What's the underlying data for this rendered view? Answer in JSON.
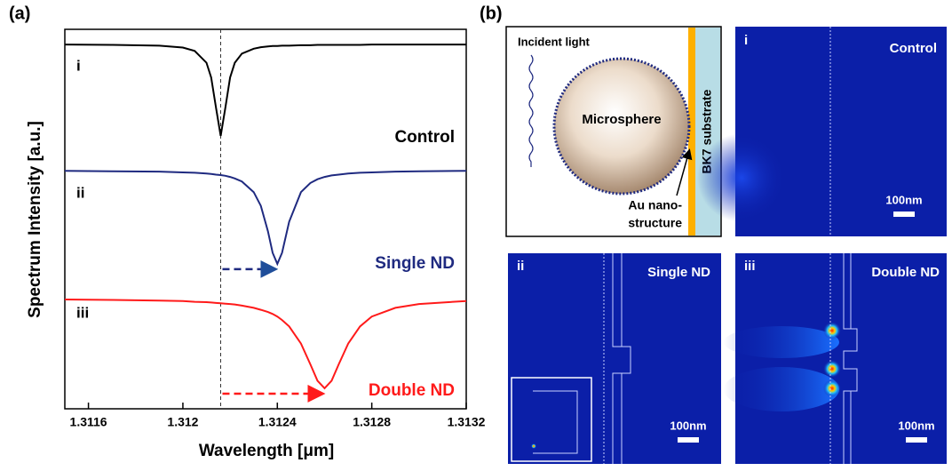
{
  "panel_labels": [
    "(a)",
    "(b)"
  ],
  "chart_data": {
    "type": "line",
    "x_label": "Wavelength [μm]",
    "y_label": "Spectrum Intensity [a.u.]",
    "x": [
      1.3115,
      1.3117,
      1.3119,
      1.312,
      1.31205,
      1.3121,
      1.31212,
      1.31214,
      1.31216,
      1.31218,
      1.3122,
      1.31222,
      1.31225,
      1.3123,
      1.31233,
      1.31236,
      1.31238,
      1.3124,
      1.31242,
      1.31245,
      1.3125,
      1.31254,
      1.31257,
      1.3126,
      1.31263,
      1.31266,
      1.3127,
      1.31275,
      1.3128,
      1.3129,
      1.313,
      1.3132
    ],
    "series": [
      {
        "name": "Control",
        "label": "i",
        "color": "#000000",
        "values": [
          9.6,
          9.59,
          9.57,
          9.52,
          9.43,
          9.12,
          8.73,
          7.94,
          7.19,
          7.94,
          8.73,
          9.12,
          9.36,
          9.49,
          9.53,
          9.55,
          9.56,
          9.56,
          9.57,
          9.57,
          9.58,
          9.58,
          9.59,
          9.59,
          9.59,
          9.59,
          9.59,
          9.59,
          9.6,
          9.6,
          9.6,
          9.6
        ]
      },
      {
        "name": "Single ND",
        "label": "ii",
        "color": "#1f2a80",
        "values": [
          6.27,
          6.26,
          6.25,
          6.23,
          6.22,
          6.2,
          6.19,
          6.17,
          6.16,
          6.14,
          6.11,
          6.07,
          5.99,
          5.71,
          5.35,
          4.68,
          4.11,
          3.82,
          4.11,
          4.93,
          5.71,
          5.95,
          6.05,
          6.11,
          6.15,
          6.17,
          6.2,
          6.22,
          6.23,
          6.25,
          6.26,
          6.27
        ]
      },
      {
        "name": "Double ND",
        "label": "iii",
        "color": "#ff1a1a",
        "values": [
          2.88,
          2.87,
          2.85,
          2.84,
          2.82,
          2.81,
          2.8,
          2.79,
          2.78,
          2.77,
          2.76,
          2.75,
          2.72,
          2.66,
          2.61,
          2.55,
          2.5,
          2.43,
          2.34,
          2.17,
          1.72,
          1.17,
          0.74,
          0.54,
          0.74,
          1.17,
          1.72,
          2.17,
          2.43,
          2.66,
          2.76,
          2.84
        ]
      }
    ],
    "vline": 1.31216,
    "xlim": [
      1.3115,
      1.3132
    ],
    "ylim": [
      0,
      10
    ],
    "xticks": [
      1.3116,
      1.312,
      1.3124,
      1.3128,
      1.3132
    ]
  },
  "panel_b": {
    "schematic": {
      "incident": "Incident light",
      "sphere": "Microsphere",
      "substrate": "BK7 substrate",
      "au": [
        "Au nano-",
        "structure"
      ]
    },
    "maps": [
      {
        "label": "i",
        "title": "Control",
        "scale": "100nm"
      },
      {
        "label": "ii",
        "title": "Single ND",
        "scale": "100nm"
      },
      {
        "label": "iii",
        "title": "Double ND",
        "scale": "100nm"
      }
    ]
  }
}
